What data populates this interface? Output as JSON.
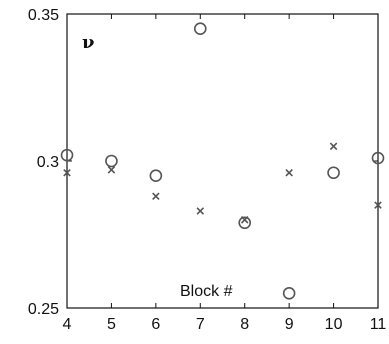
{
  "chart_data": {
    "type": "scatter",
    "title": "",
    "xlabel": "Block #",
    "ylabel": "ν",
    "xlim": [
      4,
      11
    ],
    "ylim": [
      0.25,
      0.35
    ],
    "x_ticks": [
      "4",
      "5",
      "6",
      "7",
      "8",
      "9",
      "10",
      "11"
    ],
    "y_ticks": [
      "0.25",
      "0.3",
      "0.35"
    ],
    "grid": false,
    "legend": "none",
    "series": [
      {
        "marker": "circle",
        "x": [
          4,
          5,
          6,
          7,
          8,
          9,
          10,
          11
        ],
        "y": [
          0.302,
          0.3,
          0.295,
          0.345,
          0.279,
          0.255,
          0.296,
          0.301
        ]
      },
      {
        "marker": "cross",
        "x": [
          4,
          5,
          6,
          7,
          8,
          9,
          10,
          11
        ],
        "y": [
          0.296,
          0.297,
          0.288,
          0.283,
          0.28,
          0.296,
          0.305,
          0.285
        ]
      }
    ],
    "colors": {
      "axis": "#111111",
      "marker": "#555555"
    }
  }
}
